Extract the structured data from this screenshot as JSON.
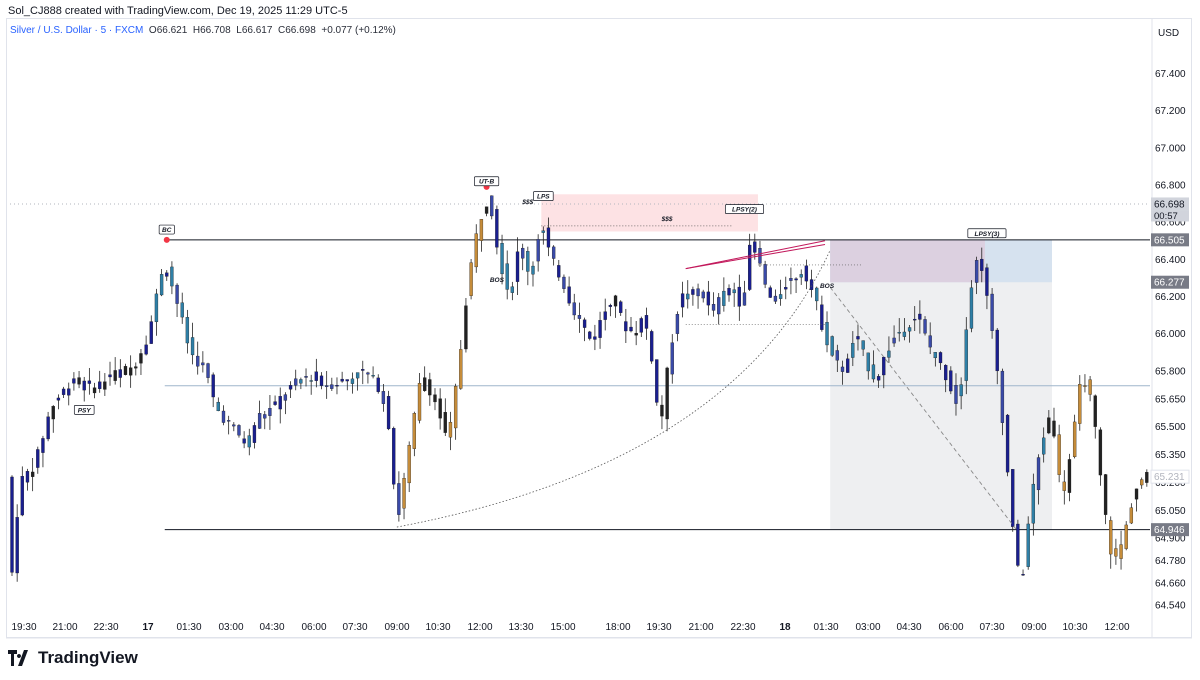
{
  "header": {
    "credit": "Sol_CJ888 created with TradingView.com, Dec 19, 2025 11:29 UTC-5"
  },
  "legend": {
    "symbol": "Silver / U.S. Dollar · 5 · FXCM",
    "o_label": "O",
    "o": "66.621",
    "h_label": "H",
    "h": "66.708",
    "l_label": "L",
    "l": "66.617",
    "c_label": "C",
    "c": "66.698",
    "change": "+0.077 (+0.12%)"
  },
  "footer": {
    "brand": "TradingView"
  },
  "chart_data": {
    "type": "candlestick",
    "currency": "USD",
    "ylim": [
      64.46,
      67.58
    ],
    "y_ticks": [
      "67.400",
      "67.200",
      "67.000",
      "66.800",
      "66.600",
      "66.400",
      "66.200",
      "66.000",
      "65.800",
      "65.650",
      "65.500",
      "65.350",
      "65.200",
      "65.050",
      "64.900",
      "64.780",
      "64.660",
      "64.540"
    ],
    "x_ticks": [
      {
        "label": "19:30",
        "bold": false
      },
      {
        "label": "21:00",
        "bold": false
      },
      {
        "label": "22:30",
        "bold": false
      },
      {
        "label": "17",
        "bold": true
      },
      {
        "label": "01:30",
        "bold": false
      },
      {
        "label": "03:00",
        "bold": false
      },
      {
        "label": "04:30",
        "bold": false
      },
      {
        "label": "06:00",
        "bold": false
      },
      {
        "label": "07:30",
        "bold": false
      },
      {
        "label": "09:00",
        "bold": false
      },
      {
        "label": "10:30",
        "bold": false
      },
      {
        "label": "12:00",
        "bold": false
      },
      {
        "label": "13:30",
        "bold": false
      },
      {
        "label": "15:00",
        "bold": false
      },
      {
        "label": "18:00",
        "bold": false
      },
      {
        "label": "19:30",
        "bold": false
      },
      {
        "label": "21:00",
        "bold": false
      },
      {
        "label": "22:30",
        "bold": false
      },
      {
        "label": "18",
        "bold": true
      },
      {
        "label": "01:30",
        "bold": false
      },
      {
        "label": "03:00",
        "bold": false
      },
      {
        "label": "04:30",
        "bold": false
      },
      {
        "label": "06:00",
        "bold": false
      },
      {
        "label": "07:30",
        "bold": false
      },
      {
        "label": "09:00",
        "bold": false
      },
      {
        "label": "10:30",
        "bold": false
      },
      {
        "label": "12:00",
        "bold": false
      }
    ],
    "price_path": [
      [
        0,
        64.55
      ],
      [
        2,
        65.2
      ],
      [
        5,
        65.3
      ],
      [
        8,
        65.6
      ],
      [
        12,
        65.75
      ],
      [
        16,
        65.7
      ],
      [
        20,
        65.78
      ],
      [
        24,
        65.82
      ],
      [
        27,
        66.0
      ],
      [
        30,
        66.4
      ],
      [
        33,
        66.12
      ],
      [
        35,
        65.9
      ],
      [
        38,
        65.8
      ],
      [
        40,
        65.6
      ],
      [
        43,
        65.5
      ],
      [
        46,
        65.4
      ],
      [
        48,
        65.55
      ],
      [
        51,
        65.6
      ],
      [
        54,
        65.7
      ],
      [
        58,
        65.78
      ],
      [
        61,
        65.72
      ],
      [
        65,
        65.75
      ],
      [
        69,
        65.8
      ],
      [
        72,
        65.7
      ],
      [
        74,
        65.45
      ],
      [
        75,
        64.95
      ],
      [
        77,
        65.3
      ],
      [
        80,
        65.8
      ],
      [
        83,
        65.6
      ],
      [
        85,
        65.4
      ],
      [
        87,
        65.8
      ],
      [
        89,
        66.3
      ],
      [
        91,
        66.6
      ],
      [
        93,
        66.75
      ],
      [
        95,
        66.4
      ],
      [
        97,
        66.2
      ],
      [
        99,
        66.5
      ],
      [
        101,
        66.3
      ],
      [
        103,
        66.6
      ],
      [
        105,
        66.4
      ],
      [
        107,
        66.3
      ],
      [
        109,
        66.15
      ],
      [
        111,
        66.05
      ],
      [
        113,
        65.95
      ],
      [
        115,
        66.1
      ],
      [
        117,
        66.2
      ],
      [
        119,
        66.05
      ],
      [
        121,
        66.0
      ],
      [
        123,
        66.1
      ],
      [
        125,
        65.8
      ],
      [
        126,
        65.45
      ],
      [
        128,
        65.9
      ],
      [
        130,
        66.2
      ],
      [
        132,
        66.2
      ],
      [
        134,
        66.25
      ],
      [
        136,
        66.1
      ],
      [
        138,
        66.2
      ],
      [
        140,
        66.25
      ],
      [
        142,
        66.15
      ],
      [
        144,
        66.55
      ],
      [
        146,
        66.3
      ],
      [
        148,
        66.15
      ],
      [
        150,
        66.25
      ],
      [
        152,
        66.3
      ],
      [
        154,
        66.35
      ],
      [
        156,
        66.2
      ],
      [
        158,
        66.0
      ],
      [
        160,
        65.85
      ],
      [
        162,
        65.8
      ],
      [
        164,
        66.0
      ],
      [
        166,
        65.85
      ],
      [
        168,
        65.75
      ],
      [
        170,
        65.9
      ],
      [
        172,
        66.0
      ],
      [
        174,
        66.05
      ],
      [
        176,
        66.1
      ],
      [
        178,
        65.95
      ],
      [
        180,
        65.85
      ],
      [
        182,
        65.75
      ],
      [
        184,
        65.6
      ],
      [
        186,
        66.2
      ],
      [
        188,
        66.45
      ],
      [
        190,
        66.1
      ],
      [
        192,
        65.7
      ],
      [
        194,
        65.1
      ],
      [
        196,
        64.6
      ],
      [
        198,
        65.1
      ],
      [
        200,
        65.4
      ],
      [
        202,
        65.6
      ],
      [
        204,
        65.1
      ],
      [
        206,
        65.4
      ],
      [
        208,
        65.8
      ],
      [
        210,
        65.6
      ],
      [
        212,
        65.1
      ],
      [
        214,
        64.75
      ],
      [
        216,
        64.9
      ],
      [
        218,
        65.15
      ],
      [
        220,
        65.23
      ]
    ],
    "levels": [
      {
        "price": 66.505,
        "label": "66.505",
        "tag_bg": "#787b86",
        "line": "#131722",
        "style": "solid"
      },
      {
        "price": 66.277,
        "label": "66.277",
        "tag_bg": "#787b86",
        "line": "none",
        "style": "none"
      },
      {
        "price": 65.72,
        "label": "",
        "tag_bg": "",
        "line": "#9fb5cc",
        "style": "solid"
      },
      {
        "price": 64.946,
        "label": "64.946",
        "tag_bg": "#787b86",
        "line": "#131722",
        "style": "solid"
      },
      {
        "price": 66.698,
        "label": "66.698",
        "tag_bg": "#d1d4dc",
        "line": "#b2b5be",
        "style": "dotted"
      }
    ],
    "last_price": {
      "value": "66.698",
      "countdown": "00:57"
    },
    "faded_price": "65.231",
    "annotations": [
      {
        "label": "PSY",
        "x": 14,
        "price": 65.55
      },
      {
        "label": "BC",
        "x": 30,
        "price": 66.52
      },
      {
        "label": "UT-B",
        "x": 92,
        "price": 66.78
      },
      {
        "label": "LPS",
        "x": 103,
        "price": 66.7
      },
      {
        "label": "LPSY(2)",
        "x": 142,
        "price": 66.63
      },
      {
        "label": "LPSY(3)",
        "x": 189,
        "price": 66.5
      },
      {
        "label": "BOS",
        "x": 94,
        "price": 66.25
      },
      {
        "label": "BOS",
        "x": 158,
        "price": 66.22
      },
      {
        "label": "$$$",
        "x": 100,
        "price": 66.67
      },
      {
        "label": "$$$",
        "x": 127,
        "price": 66.58
      }
    ],
    "markers": [
      {
        "x": 30,
        "price": 66.505,
        "color": "#f23645"
      },
      {
        "x": 92,
        "price": 66.79,
        "color": "#f23645"
      },
      {
        "x": 103,
        "price": 66.73,
        "color": "#f23645"
      }
    ],
    "zones": [
      {
        "x0": 103,
        "x1": 145,
        "p0": 66.55,
        "p1": 66.75,
        "color": "#fde2e4"
      },
      {
        "x0": 159,
        "x1": 202,
        "p0": 64.946,
        "p1": 66.505,
        "color": "#eeeff1"
      },
      {
        "x0": 159,
        "x1": 202,
        "p0": 66.277,
        "p1": 66.505,
        "color": "#d6e2ef"
      },
      {
        "x0": 159,
        "x1": 189,
        "p0": 66.277,
        "p1": 66.505,
        "color": "#dcd0e0"
      }
    ]
  }
}
